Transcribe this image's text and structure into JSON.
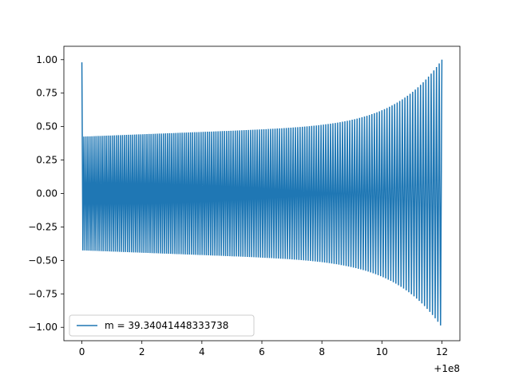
{
  "chart_data": {
    "type": "line",
    "title": "",
    "xlabel": "",
    "ylabel": "",
    "x_offset_label": "+1e8",
    "xlim": [
      -0.6,
      12.6
    ],
    "ylim": [
      -1.1,
      1.1
    ],
    "x_ticks": [
      0,
      2,
      4,
      6,
      8,
      10,
      12
    ],
    "x_tick_labels": [
      "0",
      "2",
      "4",
      "6",
      "8",
      "10",
      "12"
    ],
    "y_ticks": [
      1.0,
      0.75,
      0.5,
      0.25,
      0.0,
      -0.25,
      -0.5,
      -0.75,
      -1.0
    ],
    "y_tick_labels": [
      "1.00",
      "0.75",
      "0.50",
      "0.25",
      "0.00",
      "−0.25",
      "−0.50",
      "−0.75",
      "−1.00"
    ],
    "grid": false,
    "legend_position": "lower-left",
    "series": [
      {
        "name": "m = 39.34041448333738",
        "color": "#1f77b4",
        "x_start": 0,
        "x_end": 12,
        "initial_value": 0.98,
        "start_amplitude": 0.425,
        "mid_amplitude": 0.53,
        "end_amplitude": 1.0,
        "approx_cycles": 160
      }
    ]
  }
}
